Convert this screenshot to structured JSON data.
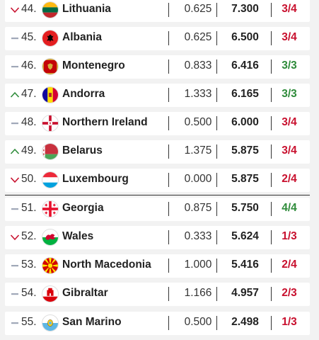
{
  "rows": [
    {
      "rank": "44.",
      "country": "Lithuania",
      "v1": "0.625",
      "v2": "7.300",
      "score": "3/4",
      "score_color": "red",
      "trend": "down"
    },
    {
      "rank": "45.",
      "country": "Albania",
      "v1": "0.625",
      "v2": "6.500",
      "score": "3/4",
      "score_color": "red",
      "trend": "same"
    },
    {
      "rank": "46.",
      "country": "Montenegro",
      "v1": "0.833",
      "v2": "6.416",
      "score": "3/3",
      "score_color": "green",
      "trend": "same"
    },
    {
      "rank": "47.",
      "country": "Andorra",
      "v1": "1.333",
      "v2": "6.165",
      "score": "3/3",
      "score_color": "green",
      "trend": "up"
    },
    {
      "rank": "48.",
      "country": "Northern Ireland",
      "v1": "0.500",
      "v2": "6.000",
      "score": "3/4",
      "score_color": "red",
      "trend": "same"
    },
    {
      "rank": "49.",
      "country": "Belarus",
      "v1": "1.375",
      "v2": "5.875",
      "score": "3/4",
      "score_color": "red",
      "trend": "up"
    },
    {
      "rank": "50.",
      "country": "Luxembourg",
      "v1": "0.000",
      "v2": "5.875",
      "score": "2/4",
      "score_color": "red",
      "trend": "down"
    },
    {
      "rank": "51.",
      "country": "Georgia",
      "v1": "0.875",
      "v2": "5.750",
      "score": "4/4",
      "score_color": "green",
      "trend": "same"
    },
    {
      "rank": "52.",
      "country": "Wales",
      "v1": "0.333",
      "v2": "5.624",
      "score": "1/3",
      "score_color": "red",
      "trend": "down"
    },
    {
      "rank": "53.",
      "country": "North Macedonia",
      "v1": "1.000",
      "v2": "5.416",
      "score": "2/4",
      "score_color": "red",
      "trend": "same"
    },
    {
      "rank": "54.",
      "country": "Gibraltar",
      "v1": "1.166",
      "v2": "4.957",
      "score": "2/3",
      "score_color": "red",
      "trend": "same"
    },
    {
      "rank": "55.",
      "country": "San Marino",
      "v1": "0.500",
      "v2": "2.498",
      "score": "1/3",
      "score_color": "red",
      "trend": "same"
    }
  ],
  "colors": {
    "red": "#c8102e",
    "green": "#2e8b3a",
    "down_arrow": "#c8102e",
    "up_arrow": "#2e8b3a",
    "same_dash": "#a0a8b8"
  },
  "icons": {
    "down": "chevron-down-icon",
    "up": "chevron-up-icon",
    "same": "dash-icon"
  }
}
